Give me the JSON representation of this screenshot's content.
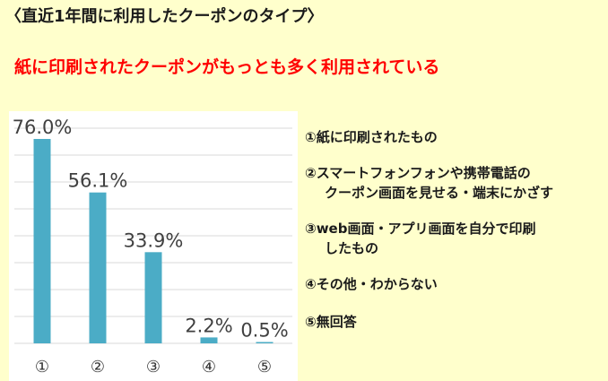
{
  "heading": "〈直近1年間に利用したクーポンのタイプ〉",
  "headline": "紙に印刷されたクーポンがもっとも多く利用されている",
  "legend": [
    {
      "line1": "①紙に印刷されたもの",
      "line2": ""
    },
    {
      "line1": "②スマートフォンフォンや携帯電話の",
      "line2": "クーポン画面を見せる・端末にかざす"
    },
    {
      "line1": "③web画面・アプリ画面を自分で印刷",
      "line2": "したもの"
    },
    {
      "line1": "④その他・わからない",
      "line2": ""
    },
    {
      "line1": "⑤無回答",
      "line2": ""
    }
  ],
  "colors": {
    "bar": "#4bacc6",
    "grid": "#d9d9d9",
    "label": "#404040"
  },
  "chart_data": {
    "type": "bar",
    "categories": [
      "①",
      "②",
      "③",
      "④",
      "⑤"
    ],
    "values": [
      76.0,
      56.1,
      33.9,
      2.2,
      0.5
    ],
    "value_labels": [
      "76.0%",
      "56.1%",
      "33.9%",
      "2.2%",
      "0.5%"
    ],
    "title": "",
    "xlabel": "",
    "ylabel": "",
    "ylim": [
      0,
      80
    ],
    "grid": true
  }
}
